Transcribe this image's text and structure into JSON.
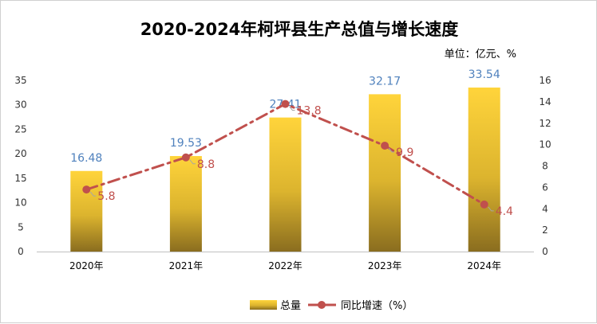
{
  "chart_data": {
    "type": "bar+line",
    "title": "2020-2024年柯坪县生产总值与增长速度",
    "unit_label": "单位：亿元、%",
    "categories": [
      "2020年",
      "2021年",
      "2022年",
      "2023年",
      "2024年"
    ],
    "series": [
      {
        "name": "总量",
        "type": "bar",
        "axis": "left",
        "values": [
          16.48,
          19.53,
          27.41,
          32.17,
          33.54
        ],
        "labels": [
          "16.48",
          "19.53",
          "27.41",
          "32.17",
          "33.54"
        ]
      },
      {
        "name": "同比增速（%）",
        "type": "line",
        "axis": "right",
        "values": [
          5.8,
          8.8,
          13.8,
          9.9,
          4.4
        ],
        "labels": [
          "5.8",
          "8.8",
          "13.8",
          "9.9",
          "4.4"
        ]
      }
    ],
    "y_left": {
      "min": 0,
      "max": 35,
      "ticks": [
        "0",
        "5",
        "10",
        "15",
        "20",
        "25",
        "30",
        "35"
      ]
    },
    "y_right": {
      "min": 0,
      "max": 16,
      "ticks": [
        "0",
        "2",
        "4",
        "6",
        "8",
        "10",
        "12",
        "14",
        "16"
      ]
    },
    "legend_position": "bottom",
    "grid": false,
    "colors": {
      "bar_top": "#ffd43b",
      "bar_bottom": "#8a6d1f",
      "line": "#c0504d",
      "bar_label": "#4f81bd",
      "line_label": "#c0504d"
    }
  }
}
